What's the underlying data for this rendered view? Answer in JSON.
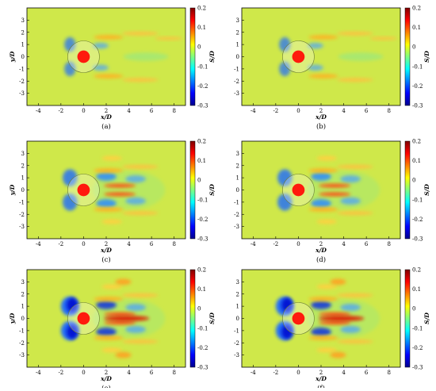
{
  "colorbar_ticks": [
    "0.2",
    "0.1",
    "0",
    "-0.1",
    "-0.2",
    "-0.3"
  ],
  "colorbar_label": "S/D",
  "x_axis_label": "x/D",
  "y_axis_label": "y/D",
  "x_ticks": [
    "-4",
    "-2",
    "0",
    "2",
    "4",
    "6",
    "8"
  ],
  "y_ticks": [
    "3",
    "2",
    "1",
    "0",
    "-1",
    "-2",
    "-3"
  ],
  "panels": [
    {
      "caption": "(a)",
      "show_ylabel": true,
      "stage": 1
    },
    {
      "caption": "(b)",
      "show_ylabel": false,
      "stage": 1
    },
    {
      "caption": "(c)",
      "show_ylabel": true,
      "stage": 2
    },
    {
      "caption": "(d)",
      "show_ylabel": false,
      "stage": 2
    },
    {
      "caption": "(e)",
      "show_ylabel": true,
      "stage": 3
    },
    {
      "caption": "(f)",
      "show_ylabel": false,
      "stage": 3
    }
  ],
  "colors": {
    "background_field": "#cfe84a",
    "cylinder_core": "#ff1a0d",
    "colormap": [
      "#00008f",
      "#0000ff",
      "#0080ff",
      "#00ffff",
      "#80ff80",
      "#ffff00",
      "#ff8000",
      "#ff0000",
      "#800000"
    ]
  }
}
